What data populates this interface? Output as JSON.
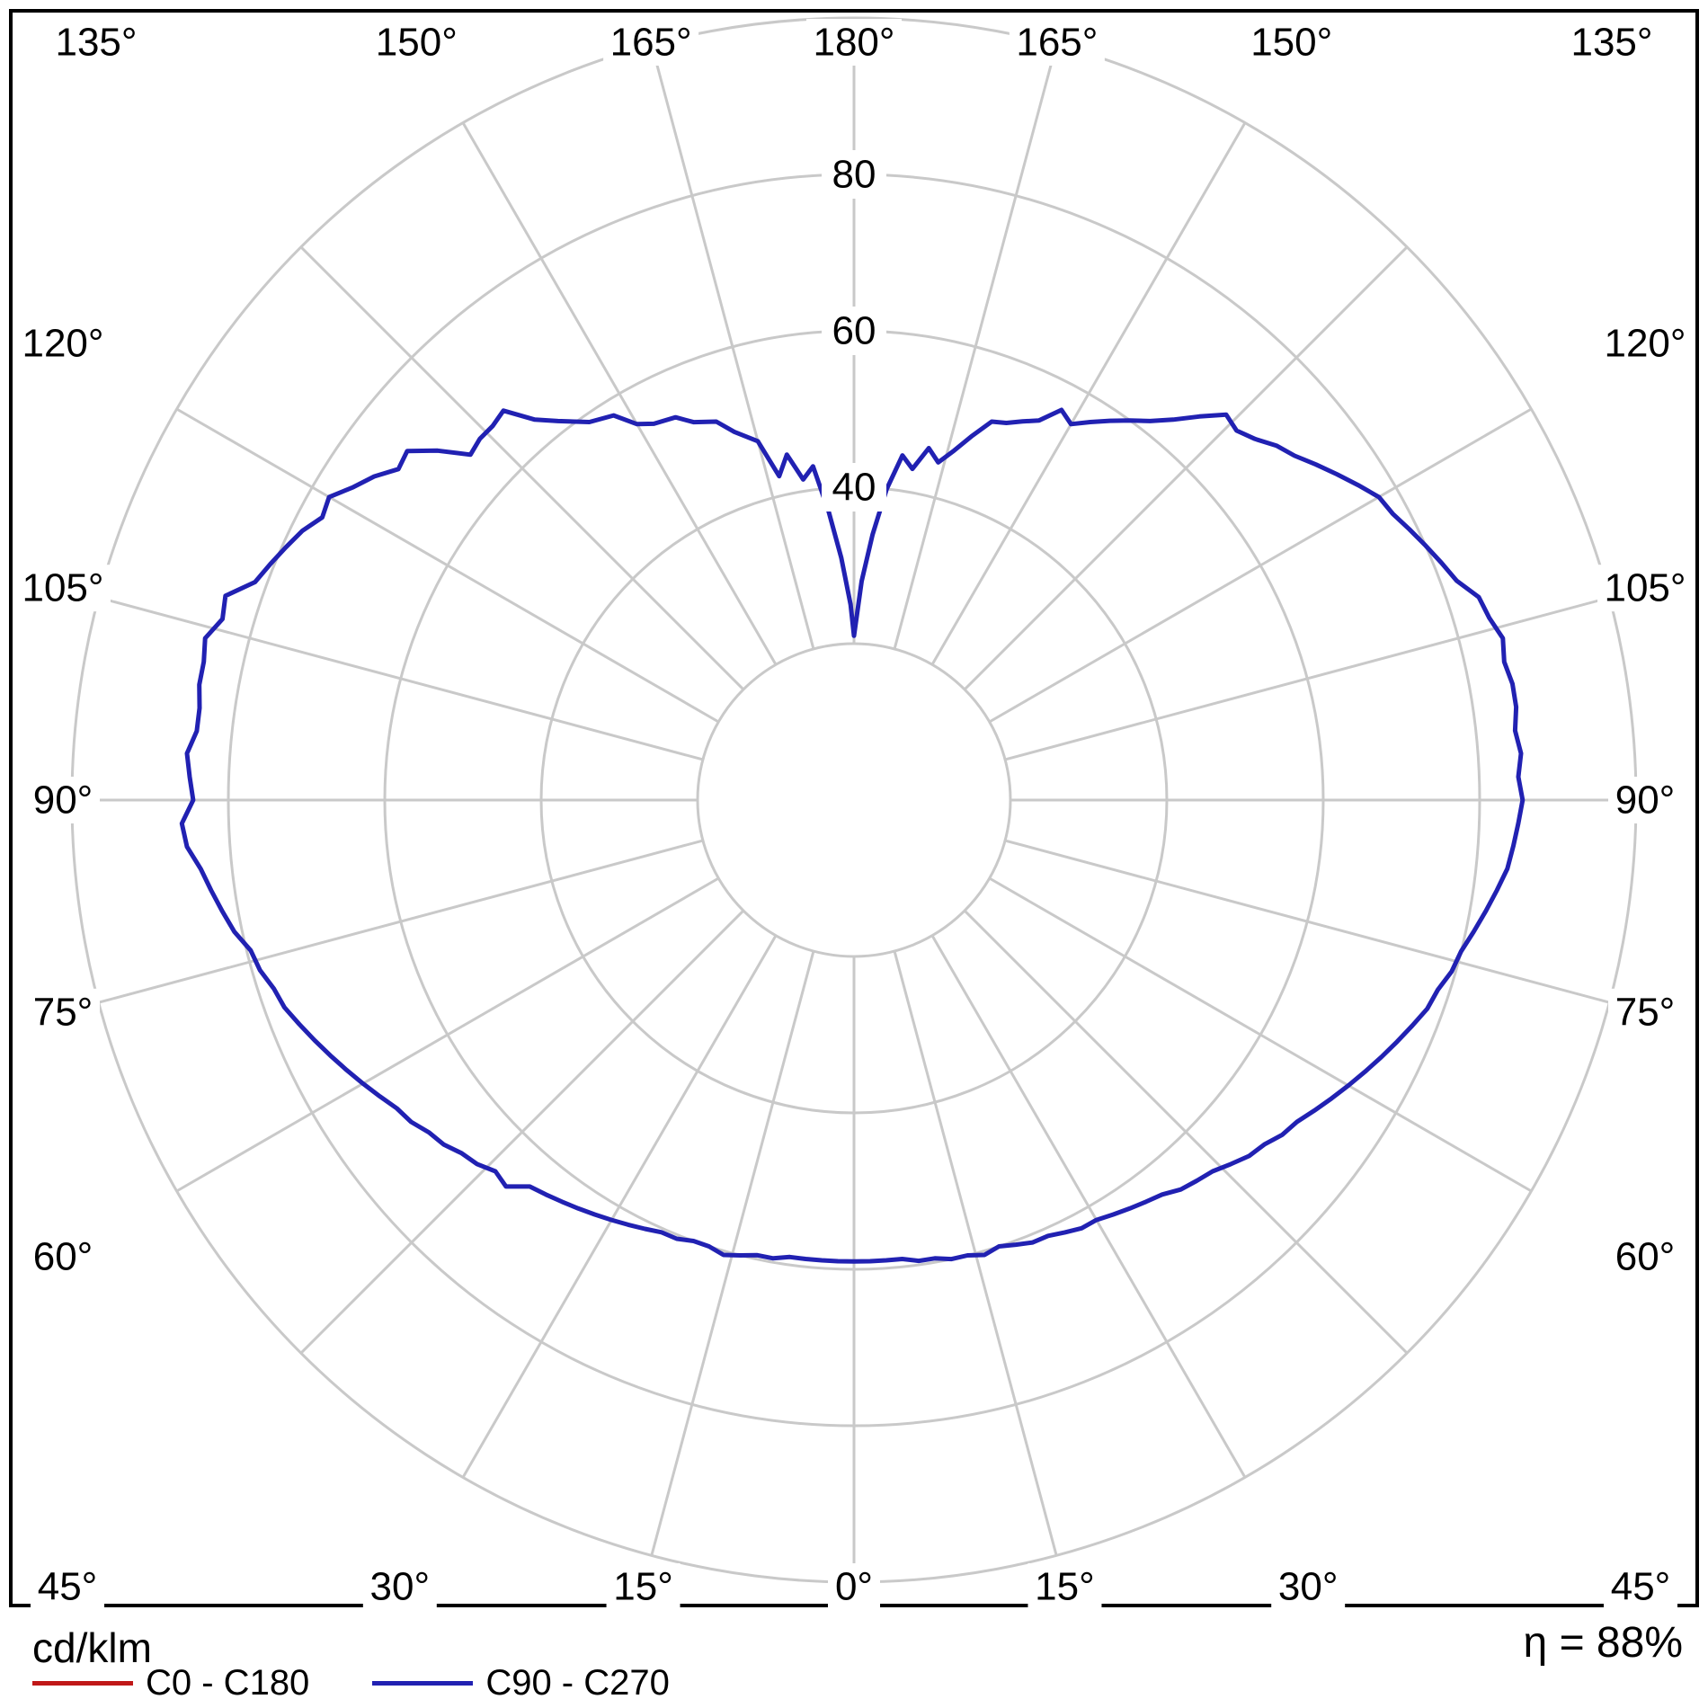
{
  "footer": {
    "unit_label": "cd/klm",
    "efficiency_label": "η = 88%"
  },
  "legend": {
    "items": [
      {
        "id": "c0-c180",
        "label": "C0 - C180",
        "color": "#c01818"
      },
      {
        "id": "c90-c270",
        "label": "C90 - C270",
        "color": "#2121b2"
      }
    ]
  },
  "chart_data": {
    "type": "polar-line",
    "units": "cd/klm",
    "efficiency_percent": 88,
    "grid_color": "#c9c9c9",
    "angle_step_deg": 15,
    "radial_max": 100,
    "radial_step": 20,
    "radial_ticks": [
      {
        "v": 40,
        "label": "40"
      },
      {
        "v": 60,
        "label": "60"
      },
      {
        "v": 80,
        "label": "80"
      }
    ],
    "angle_labels": [
      {
        "a": -165,
        "label": "165°"
      },
      {
        "a": -150,
        "label": "150°"
      },
      {
        "a": -135,
        "label": "135°"
      },
      {
        "a": -120,
        "label": "120°"
      },
      {
        "a": -105,
        "label": "105°"
      },
      {
        "a": -90,
        "label": "90°"
      },
      {
        "a": -75,
        "label": "75°"
      },
      {
        "a": -60,
        "label": "60°"
      },
      {
        "a": -45,
        "label": "45°"
      },
      {
        "a": -30,
        "label": "30°"
      },
      {
        "a": -15,
        "label": "15°"
      },
      {
        "a": 0,
        "label": "0°"
      },
      {
        "a": 15,
        "label": "15°"
      },
      {
        "a": 30,
        "label": "30°"
      },
      {
        "a": 45,
        "label": "45°"
      },
      {
        "a": 60,
        "label": "60°"
      },
      {
        "a": 75,
        "label": "75°"
      },
      {
        "a": 90,
        "label": "90°"
      },
      {
        "a": 105,
        "label": "105°"
      },
      {
        "a": 120,
        "label": "120°"
      },
      {
        "a": 135,
        "label": "135°"
      },
      {
        "a": 150,
        "label": "150°"
      },
      {
        "a": 165,
        "label": "165°"
      },
      {
        "a": 180,
        "label": "180°"
      }
    ],
    "series": [
      {
        "id": "c0-c180",
        "name": "C0 - C180",
        "color": "#c01818",
        "points": []
      },
      {
        "id": "c90-c270",
        "name": "C90 - C270",
        "color": "#2121b2",
        "points": [
          [
            -180,
            21
          ],
          [
            -179,
            25
          ],
          [
            -177,
            31
          ],
          [
            -175,
            37
          ],
          [
            -173,
            43
          ],
          [
            -171,
            41.5
          ],
          [
            -169,
            45
          ],
          [
            -167,
            42.5
          ],
          [
            -165,
            47.5
          ],
          [
            -162,
            49.5
          ],
          [
            -160,
            51.5
          ],
          [
            -157,
            52.5
          ],
          [
            -155,
            54
          ],
          [
            -152,
            54.5
          ],
          [
            -150,
            55.5
          ],
          [
            -148,
            58
          ],
          [
            -145,
            59
          ],
          [
            -142,
            61.5
          ],
          [
            -140,
            63.5
          ],
          [
            -138,
            67
          ],
          [
            -136,
            66.5
          ],
          [
            -134,
            66.5
          ],
          [
            -132,
            66
          ],
          [
            -130,
            69.5
          ],
          [
            -128,
            72.5
          ],
          [
            -126,
            72
          ],
          [
            -124,
            74
          ],
          [
            -122,
            75.5
          ],
          [
            -120,
            77.5
          ],
          [
            -118,
            77
          ],
          [
            -116,
            78.5
          ],
          [
            -114,
            79.5
          ],
          [
            -112,
            80.5
          ],
          [
            -110,
            81.5
          ],
          [
            -108,
            84.5
          ],
          [
            -106,
            84
          ],
          [
            -104,
            85.5
          ],
          [
            -102,
            85
          ],
          [
            -100,
            85
          ],
          [
            -98,
            84.5
          ],
          [
            -96,
            84.5
          ],
          [
            -94,
            85.5
          ],
          [
            -92,
            85
          ],
          [
            -90,
            84.5
          ],
          [
            -88,
            86
          ],
          [
            -86,
            85.5
          ],
          [
            -84,
            84
          ],
          [
            -82,
            83
          ],
          [
            -80,
            82
          ],
          [
            -78,
            81
          ],
          [
            -76,
            79.5
          ],
          [
            -74,
            79
          ],
          [
            -72,
            78
          ],
          [
            -70,
            77.5
          ],
          [
            -68,
            76.5
          ],
          [
            -66,
            75.5
          ],
          [
            -64,
            74.5
          ],
          [
            -62,
            73.5
          ],
          [
            -60,
            72.5
          ],
          [
            -58,
            71.5
          ],
          [
            -56,
            70.5
          ],
          [
            -54,
            70
          ],
          [
            -52,
            69
          ],
          [
            -50,
            68.5
          ],
          [
            -48,
            67.5
          ],
          [
            -46,
            67
          ],
          [
            -44,
            66
          ],
          [
            -42,
            66.5
          ],
          [
            -40,
            64.5
          ],
          [
            -38,
            64
          ],
          [
            -36,
            63.5
          ],
          [
            -34,
            63
          ],
          [
            -32,
            62.5
          ],
          [
            -30,
            62
          ],
          [
            -28,
            61.5
          ],
          [
            -26,
            61
          ],
          [
            -24,
            60.5
          ],
          [
            -22,
            60.5
          ],
          [
            -20,
            60
          ],
          [
            -18,
            60
          ],
          [
            -16,
            60.5
          ],
          [
            -14,
            60
          ],
          [
            -12,
            59.5
          ],
          [
            -10,
            59.5
          ],
          [
            -8,
            59
          ],
          [
            -6,
            59
          ],
          [
            -4,
            59
          ],
          [
            -2,
            59
          ],
          [
            0,
            59
          ],
          [
            2,
            59
          ],
          [
            4,
            59
          ],
          [
            6,
            59
          ],
          [
            8,
            59.5
          ],
          [
            10,
            59.5
          ],
          [
            12,
            60
          ],
          [
            14,
            60
          ],
          [
            16,
            60.5
          ],
          [
            18,
            60
          ],
          [
            20,
            60.5
          ],
          [
            22,
            61
          ],
          [
            24,
            61
          ],
          [
            26,
            61.5
          ],
          [
            28,
            62
          ],
          [
            30,
            62
          ],
          [
            32,
            62.5
          ],
          [
            34,
            63
          ],
          [
            36,
            63.5
          ],
          [
            38,
            64
          ],
          [
            40,
            65
          ],
          [
            42,
            65.5
          ],
          [
            44,
            66
          ],
          [
            46,
            67
          ],
          [
            48,
            68
          ],
          [
            50,
            68.5
          ],
          [
            52,
            69.5
          ],
          [
            54,
            70
          ],
          [
            56,
            71
          ],
          [
            58,
            72
          ],
          [
            60,
            73
          ],
          [
            62,
            74
          ],
          [
            64,
            75
          ],
          [
            66,
            76
          ],
          [
            68,
            77
          ],
          [
            70,
            78
          ],
          [
            72,
            78.5
          ],
          [
            74,
            79.5
          ],
          [
            76,
            80
          ],
          [
            78,
            81
          ],
          [
            80,
            82
          ],
          [
            82,
            83
          ],
          [
            84,
            84
          ],
          [
            86,
            84.5
          ],
          [
            88,
            85
          ],
          [
            90,
            85.5
          ],
          [
            92,
            85
          ],
          [
            94,
            85.5
          ],
          [
            96,
            85
          ],
          [
            98,
            85.5
          ],
          [
            100,
            85.5
          ],
          [
            102,
            85
          ],
          [
            104,
            85.5
          ],
          [
            106,
            84.5
          ],
          [
            108,
            84
          ],
          [
            110,
            82
          ],
          [
            112,
            81
          ],
          [
            114,
            80
          ],
          [
            116,
            79
          ],
          [
            118,
            78
          ],
          [
            120,
            77.5
          ],
          [
            122,
            76
          ],
          [
            124,
            74.5
          ],
          [
            126,
            73
          ],
          [
            128,
            71.5
          ],
          [
            130,
            70.5
          ],
          [
            132,
            69
          ],
          [
            134,
            68
          ],
          [
            136,
            68.5
          ],
          [
            138,
            66
          ],
          [
            140,
            63.5
          ],
          [
            142,
            61.5
          ],
          [
            144,
            60
          ],
          [
            146,
            58.5
          ],
          [
            148,
            57
          ],
          [
            150,
            55.5
          ],
          [
            152,
            56.5
          ],
          [
            154,
            54
          ],
          [
            156,
            53
          ],
          [
            158,
            52
          ],
          [
            160,
            51.5
          ],
          [
            162,
            49
          ],
          [
            164,
            46.5
          ],
          [
            166,
            44.5
          ],
          [
            168,
            46
          ],
          [
            170,
            43
          ],
          [
            172,
            44.5
          ],
          [
            174,
            40
          ],
          [
            176,
            34
          ],
          [
            178,
            28
          ],
          [
            180,
            21
          ]
        ]
      }
    ]
  }
}
